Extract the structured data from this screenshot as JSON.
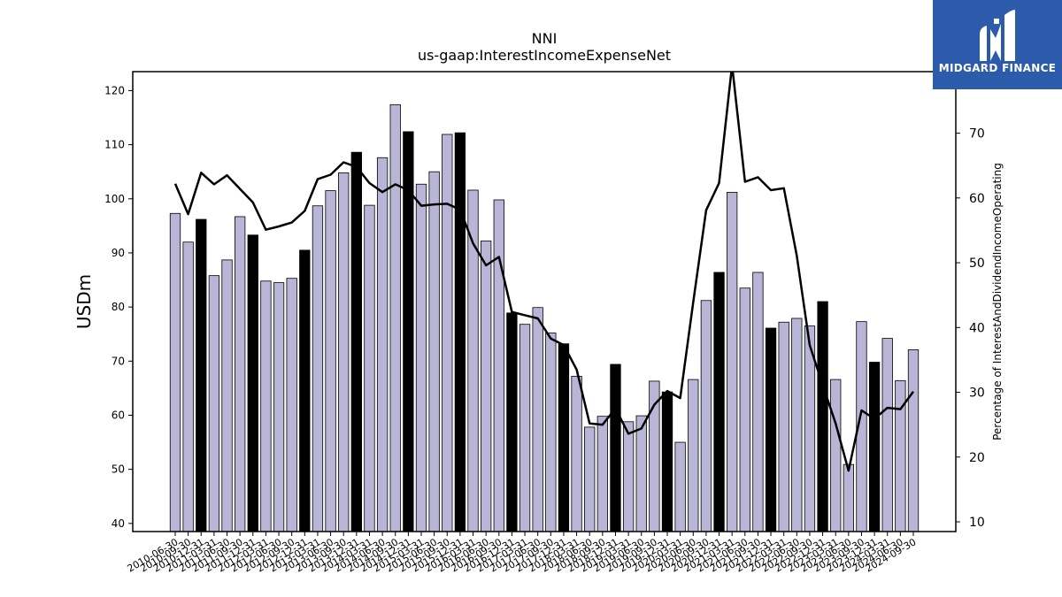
{
  "chart_data": {
    "type": "bar",
    "title": "NNI",
    "subtitle": "us-gaap:InterestIncomeExpenseNet",
    "ylabel": "USDm",
    "y2label": "Percentage of InterestAndDividendIncomeOperating",
    "ylim": [
      38.5,
      123.5
    ],
    "y2lim": [
      8.5,
      79.5
    ],
    "yticks": [
      40,
      50,
      60,
      70,
      80,
      90,
      100,
      110,
      120
    ],
    "y2ticks": [
      10,
      20,
      30,
      40,
      50,
      60,
      70
    ],
    "colors": {
      "bar": "#b8b5d6",
      "highlight": "#000000",
      "line": "#000000"
    },
    "categories": [
      "2010-06-30",
      "2010-09-30",
      "2010-12-31",
      "2011-03-31",
      "2011-06-30",
      "2011-09-30",
      "2011-12-31",
      "2012-03-31",
      "2012-06-30",
      "2012-09-30",
      "2012-12-31",
      "2013-03-31",
      "2013-06-30",
      "2013-09-30",
      "2013-12-31",
      "2014-03-31",
      "2014-06-30",
      "2014-09-30",
      "2014-12-31",
      "2015-03-31",
      "2015-06-30",
      "2015-09-30",
      "2015-12-31",
      "2016-03-31",
      "2016-06-30",
      "2016-09-30",
      "2016-12-31",
      "2017-03-31",
      "2017-06-30",
      "2017-09-30",
      "2017-12-31",
      "2018-03-31",
      "2018-06-30",
      "2018-09-30",
      "2018-12-31",
      "2019-03-31",
      "2019-06-30",
      "2019-09-30",
      "2019-12-31",
      "2020-03-31",
      "2020-06-30",
      "2020-09-30",
      "2020-12-31",
      "2021-03-31",
      "2021-06-30",
      "2021-09-30",
      "2021-12-31",
      "2022-03-31",
      "2022-06-30",
      "2022-09-30",
      "2022-12-31",
      "2023-03-31",
      "2023-06-30",
      "2023-09-30",
      "2023-12-31",
      "2024-03-31",
      "2024-06-30",
      "2024-09-30"
    ],
    "highlight": [
      false,
      false,
      true,
      false,
      false,
      false,
      true,
      false,
      false,
      false,
      true,
      false,
      false,
      false,
      true,
      false,
      false,
      false,
      true,
      false,
      false,
      false,
      true,
      false,
      false,
      false,
      true,
      false,
      false,
      false,
      true,
      false,
      false,
      false,
      true,
      false,
      false,
      false,
      true,
      false,
      false,
      false,
      true,
      false,
      false,
      false,
      true,
      false,
      false,
      false,
      true,
      false,
      false,
      false,
      true,
      false,
      false,
      false
    ],
    "series": [
      {
        "type": "bar",
        "values": [
          97.3,
          92.0,
          96.2,
          85.8,
          88.7,
          96.7,
          93.3,
          84.8,
          84.5,
          85.3,
          90.5,
          98.7,
          101.5,
          104.8,
          108.6,
          98.8,
          107.6,
          117.4,
          112.4,
          102.7,
          105.0,
          111.9,
          112.2,
          101.6,
          92.2,
          99.8,
          78.9,
          76.8,
          79.9,
          75.2,
          73.2,
          67.2,
          57.8,
          59.8,
          69.4,
          58.8,
          59.9,
          66.3,
          64.3,
          55.0,
          66.6,
          81.2,
          86.4,
          101.2,
          83.5,
          86.4,
          76.1,
          77.2,
          77.9,
          76.5,
          81.0,
          66.6,
          50.9,
          77.3,
          69.8,
          74.2,
          66.4,
          72.1
        ]
      },
      {
        "type": "line",
        "axis": "right",
        "values": [
          62.2,
          57.5,
          63.9,
          62.1,
          63.5,
          61.4,
          59.3,
          55.1,
          55.6,
          56.2,
          58.0,
          62.9,
          63.6,
          65.5,
          64.8,
          62.3,
          60.9,
          62.1,
          61.2,
          58.8,
          59.0,
          59.1,
          58.2,
          53.0,
          49.6,
          50.9,
          42.4,
          41.9,
          41.4,
          38.3,
          37.3,
          33.5,
          25.2,
          25.0,
          27.5,
          23.6,
          24.4,
          28.1,
          30.2,
          29.1,
          43.9,
          58.1,
          62.3,
          80.5,
          62.5,
          63.2,
          61.2,
          61.5,
          51.1,
          37.3,
          31.1,
          25.2,
          17.9,
          27.2,
          25.9,
          27.6,
          27.4,
          30.1
        ]
      }
    ]
  },
  "logo": {
    "text": "MIDGARD FINANCE"
  }
}
